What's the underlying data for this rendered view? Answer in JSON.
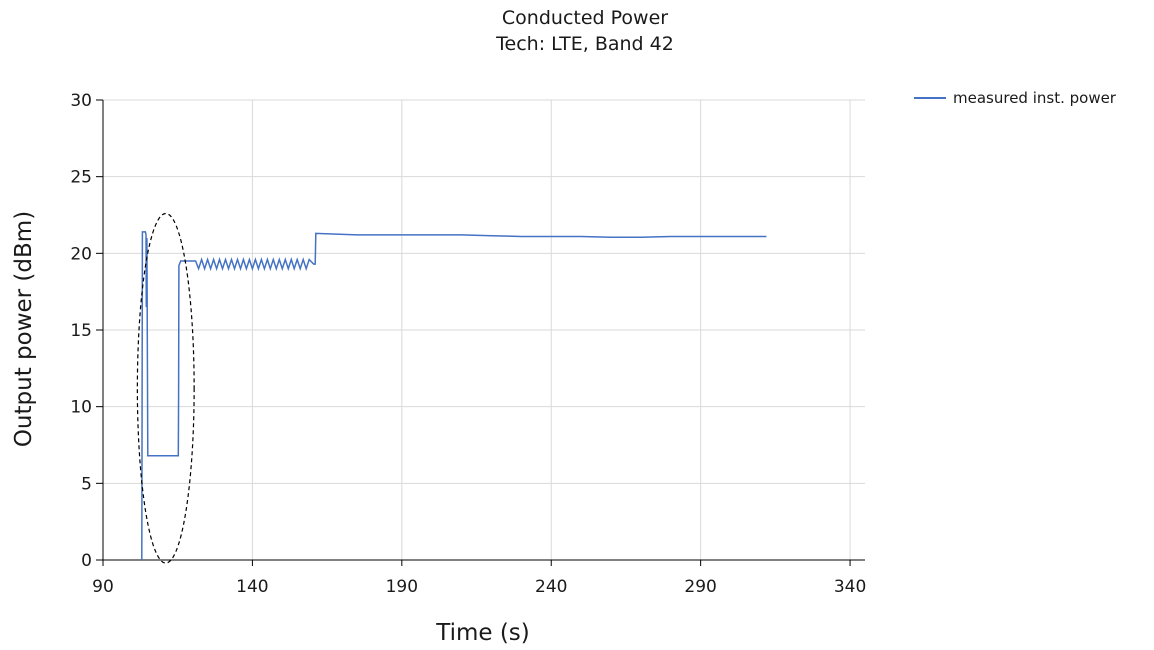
{
  "chart_data": {
    "type": "line",
    "title": "Conducted Power",
    "subtitle": "Tech: LTE, Band 42",
    "xlabel": "Time (s)",
    "ylabel": "Output power (dBm)",
    "xlim": [
      90,
      345
    ],
    "ylim": [
      0,
      30
    ],
    "x_ticks": [
      90,
      140,
      190,
      240,
      290,
      340
    ],
    "y_ticks": [
      0,
      5,
      10,
      15,
      20,
      25,
      30
    ],
    "grid": true,
    "legend_position": "top-right",
    "series": [
      {
        "name": "measured inst. power",
        "color": "#4472c4",
        "points": [
          [
            103.0,
            0.0
          ],
          [
            103.2,
            21.4
          ],
          [
            104.2,
            21.4
          ],
          [
            104.4,
            21.2
          ],
          [
            104.5,
            16.5
          ],
          [
            104.7,
            21.0
          ],
          [
            105.0,
            6.8
          ],
          [
            110.0,
            6.8
          ],
          [
            115.0,
            6.8
          ],
          [
            115.2,
            6.8
          ],
          [
            115.3,
            10.7
          ],
          [
            115.4,
            19.2
          ],
          [
            116.0,
            19.5
          ],
          [
            121.0,
            19.5
          ],
          [
            122.0,
            19.0
          ],
          [
            123.0,
            19.6
          ],
          [
            124.0,
            19.0
          ],
          [
            125.0,
            19.6
          ],
          [
            126.0,
            19.0
          ],
          [
            127.0,
            19.6
          ],
          [
            128.0,
            19.0
          ],
          [
            129.0,
            19.6
          ],
          [
            130.0,
            19.0
          ],
          [
            131.0,
            19.6
          ],
          [
            132.0,
            19.0
          ],
          [
            133.0,
            19.6
          ],
          [
            134.0,
            19.0
          ],
          [
            135.0,
            19.6
          ],
          [
            136.0,
            19.0
          ],
          [
            137.0,
            19.6
          ],
          [
            138.0,
            19.0
          ],
          [
            139.0,
            19.6
          ],
          [
            140.0,
            19.0
          ],
          [
            141.0,
            19.6
          ],
          [
            142.0,
            19.0
          ],
          [
            143.0,
            19.6
          ],
          [
            144.0,
            19.0
          ],
          [
            145.0,
            19.6
          ],
          [
            146.0,
            19.0
          ],
          [
            147.0,
            19.6
          ],
          [
            148.0,
            19.0
          ],
          [
            149.0,
            19.6
          ],
          [
            150.0,
            19.0
          ],
          [
            151.0,
            19.6
          ],
          [
            152.0,
            19.0
          ],
          [
            153.0,
            19.6
          ],
          [
            154.0,
            19.0
          ],
          [
            155.0,
            19.6
          ],
          [
            156.0,
            19.0
          ],
          [
            157.0,
            19.6
          ],
          [
            158.0,
            19.0
          ],
          [
            159.0,
            19.6
          ],
          [
            160.5,
            19.3
          ],
          [
            161.0,
            19.3
          ],
          [
            161.2,
            21.3
          ],
          [
            175.0,
            21.2
          ],
          [
            190.0,
            21.2
          ],
          [
            200.0,
            21.2
          ],
          [
            210.0,
            21.2
          ],
          [
            220.0,
            21.15
          ],
          [
            230.0,
            21.1
          ],
          [
            240.0,
            21.1
          ],
          [
            250.0,
            21.1
          ],
          [
            260.0,
            21.05
          ],
          [
            270.0,
            21.05
          ],
          [
            280.0,
            21.1
          ],
          [
            290.0,
            21.1
          ],
          [
            300.0,
            21.1
          ],
          [
            312.0,
            21.1
          ]
        ]
      }
    ],
    "annotation": {
      "shape": "dashed-ellipse",
      "x_center": 111.0,
      "x_radius": 9.5,
      "y_center": 11.2,
      "y_radius": 11.4
    }
  }
}
